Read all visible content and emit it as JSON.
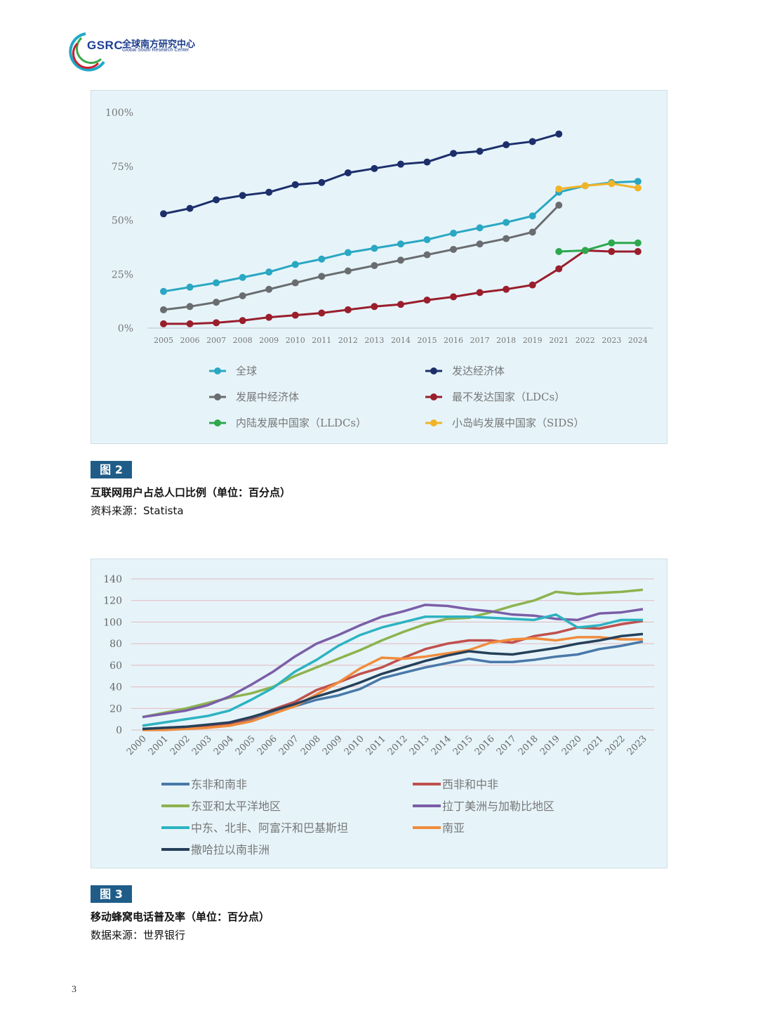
{
  "header": {
    "logo_mark": "GSRC",
    "logo_cn": "全球南方研究中心",
    "logo_en": "Global South Research Center",
    "colors": {
      "brand_blue": "#1d3f94",
      "brand_teal": "#20a8c8",
      "brand_red": "#c8202f",
      "brand_green": "#3aa84a"
    }
  },
  "figure2": {
    "tag": "图 2",
    "caption": "互联网用户占总人口比例（单位：百分点）",
    "source": "资料来源：Statista"
  },
  "figure3": {
    "tag": "图 3",
    "caption": "移动蜂窝电话普及率（单位：百分点）",
    "source": "数据来源：世界银行"
  },
  "page_number": "3",
  "chart_data": [
    {
      "type": "line",
      "title": "",
      "xlabel": "",
      "ylabel": "",
      "ylim": [
        0,
        100
      ],
      "y_ticks": [
        "0%",
        "25%",
        "50%",
        "75%",
        "100%"
      ],
      "y_tick_values": [
        0,
        25,
        50,
        75,
        100
      ],
      "grid": false,
      "markers": true,
      "categories": [
        "2005",
        "2006",
        "2007",
        "2008",
        "2009",
        "2010",
        "2011",
        "2012",
        "2013",
        "2014",
        "2015",
        "2016",
        "2017",
        "2018",
        "2019",
        "2021",
        "2022",
        "2023",
        "2024"
      ],
      "series": [
        {
          "name": "全球",
          "color": "#2aa7c2",
          "values": [
            17,
            19,
            21,
            23.5,
            26,
            29.5,
            32,
            35,
            37,
            39,
            41,
            44,
            46.5,
            49,
            52,
            63,
            66,
            67.5,
            68
          ]
        },
        {
          "name": "发达经济体",
          "color": "#1d2f6b",
          "values": [
            53,
            55.5,
            59.5,
            61.5,
            63,
            66.5,
            67.5,
            72,
            74,
            76,
            77,
            81,
            82,
            85,
            86.5,
            90,
            null,
            null,
            null
          ]
        },
        {
          "name": "发展中经济体",
          "color": "#6a6d70",
          "values": [
            8.5,
            10,
            12,
            15,
            18,
            21,
            24,
            26.5,
            29,
            31.5,
            34,
            36.5,
            39,
            41.5,
            44.5,
            57,
            null,
            null,
            null
          ]
        },
        {
          "name": "最不发达国家（LDCs）",
          "color": "#9a1e2c",
          "values": [
            2,
            2,
            2.5,
            3.5,
            5,
            6,
            7,
            8.5,
            10,
            11,
            13,
            14.5,
            16.5,
            18,
            20,
            27.5,
            36,
            35.5,
            35.5
          ]
        },
        {
          "name": "内陆发展中国家（LLDCs）",
          "color": "#2ea84c",
          "values": [
            null,
            null,
            null,
            null,
            null,
            null,
            null,
            null,
            null,
            null,
            null,
            null,
            null,
            null,
            null,
            35.5,
            36,
            39.5,
            39.5
          ]
        },
        {
          "name": "小岛屿发展中国家（SIDS）",
          "color": "#f0b429",
          "values": [
            null,
            null,
            null,
            null,
            null,
            null,
            null,
            null,
            null,
            null,
            null,
            null,
            null,
            null,
            null,
            64.5,
            66,
            67,
            65
          ]
        }
      ],
      "legend_position": "bottom"
    },
    {
      "type": "line",
      "title": "",
      "xlabel": "",
      "ylabel": "",
      "ylim": [
        0,
        140
      ],
      "y_ticks": [
        "0",
        "20",
        "40",
        "60",
        "80",
        "100",
        "120",
        "140"
      ],
      "y_tick_values": [
        0,
        20,
        40,
        60,
        80,
        100,
        120,
        140
      ],
      "grid": true,
      "markers": false,
      "categories": [
        "2000",
        "2001",
        "2002",
        "2003",
        "2004",
        "2005",
        "2006",
        "2007",
        "2008",
        "2009",
        "2010",
        "2011",
        "2012",
        "2013",
        "2014",
        "2015",
        "2016",
        "2017",
        "2018",
        "2019",
        "2020",
        "2021",
        "2022",
        "2023"
      ],
      "series": [
        {
          "name": "东非和南非",
          "color": "#4a78a8",
          "values": [
            1,
            2,
            3,
            4,
            6,
            10,
            16,
            22,
            28,
            32,
            38,
            48,
            53,
            58,
            62,
            66,
            63,
            63,
            65,
            68,
            70,
            75,
            78,
            82
          ]
        },
        {
          "name": "西非和中非",
          "color": "#c0504d",
          "values": [
            1,
            1,
            2,
            3,
            6,
            11,
            19,
            26,
            37,
            44,
            52,
            58,
            67,
            75,
            80,
            83,
            83,
            81,
            87,
            90,
            95,
            94,
            98,
            101
          ]
        },
        {
          "name": "东亚和太平洋地区",
          "color": "#8db34e",
          "values": [
            12,
            16,
            20,
            25,
            30,
            34,
            40,
            50,
            58,
            66,
            74,
            83,
            91,
            98,
            103,
            104,
            109,
            115,
            120,
            128,
            126,
            127,
            128,
            130
          ]
        },
        {
          "name": "拉丁美洲与加勒比地区",
          "color": "#7b5ea7",
          "values": [
            12,
            15,
            18,
            23,
            31,
            42,
            54,
            68,
            80,
            88,
            97,
            105,
            110,
            116,
            115,
            112,
            110,
            107,
            106,
            103,
            102,
            108,
            109,
            112
          ]
        },
        {
          "name": "中东、北非、阿富汗和巴基斯坦",
          "color": "#2db3c1",
          "values": [
            4,
            7,
            10,
            13,
            18,
            28,
            39,
            54,
            65,
            78,
            88,
            95,
            100,
            105,
            105,
            105,
            104,
            103,
            102,
            107,
            95,
            97,
            102,
            102
          ]
        },
        {
          "name": "南亚",
          "color": "#f08c3c",
          "values": [
            0,
            0,
            1,
            2,
            4,
            8,
            15,
            22,
            33,
            44,
            57,
            67,
            66,
            68,
            71,
            74,
            81,
            84,
            85,
            83,
            86,
            86,
            84,
            84
          ]
        },
        {
          "name": "撒哈拉以南非洲",
          "color": "#26405a",
          "values": [
            1,
            2,
            3,
            5,
            7,
            12,
            18,
            24,
            31,
            37,
            44,
            52,
            58,
            64,
            69,
            73,
            71,
            70,
            73,
            76,
            80,
            83,
            87,
            89
          ]
        }
      ],
      "legend_position": "bottom"
    }
  ]
}
